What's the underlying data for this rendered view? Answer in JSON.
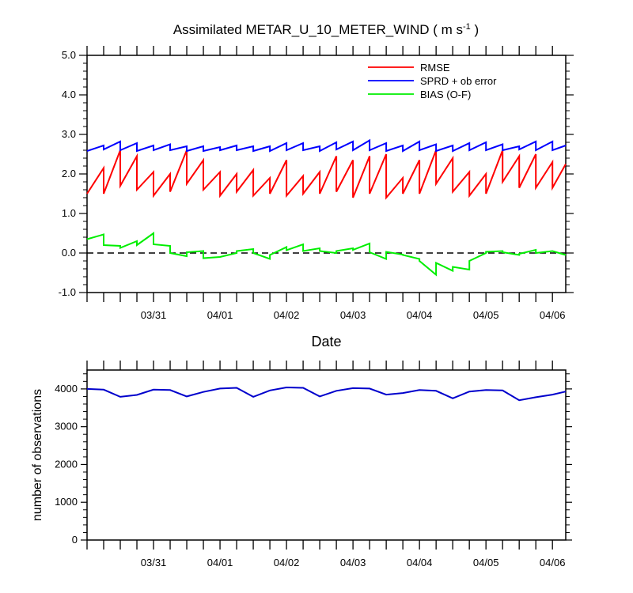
{
  "title": {
    "main": "Assimilated METAR_U_10_METER_WIND ( m s",
    "sup": "-1",
    "tail": " )"
  },
  "colors": {
    "rmse": "#ff0000",
    "sprd": "#0000ff",
    "bias": "#00ee00",
    "obs_line": "#0000cc",
    "zero_line": "#000000"
  },
  "chart_data": [
    {
      "type": "line",
      "x_unit": "days since 03/30 00Z",
      "xlim": [
        0,
        7.2
      ],
      "ylim": [
        -1,
        5
      ],
      "yticks": [
        -1,
        0,
        1,
        2,
        3,
        4,
        5
      ],
      "ytick_labels": [
        "-1.0",
        "0.0",
        "1.0",
        "2.0",
        "3.0",
        "4.0",
        "5.0"
      ],
      "xtick_labels": [
        "03/31",
        "04/01",
        "04/02",
        "04/03",
        "04/04",
        "04/05",
        "04/06"
      ],
      "xlabel": "Date",
      "ylabel": "",
      "reference_line": {
        "y": 0,
        "style": "dashed"
      },
      "legend": {
        "position": "top-right",
        "entries": [
          "RMSE",
          "SPRD + ob error",
          "BIAS (O-F)"
        ]
      },
      "series": [
        {
          "name": "RMSE",
          "color": "#ff0000",
          "x": [
            0.0,
            0.25,
            0.25,
            0.5,
            0.5,
            0.75,
            0.75,
            1.0,
            1.0,
            1.25,
            1.25,
            1.5,
            1.5,
            1.75,
            1.75,
            2.0,
            2.0,
            2.25,
            2.25,
            2.5,
            2.5,
            2.75,
            2.75,
            3.0,
            3.0,
            3.25,
            3.25,
            3.5,
            3.5,
            3.75,
            3.75,
            4.0,
            4.0,
            4.25,
            4.25,
            4.5,
            4.5,
            4.75,
            4.75,
            5.0,
            5.0,
            5.25,
            5.25,
            5.5,
            5.5,
            5.75,
            5.75,
            6.0,
            6.0,
            6.25,
            6.25,
            6.5,
            6.5,
            6.75,
            6.75,
            7.0,
            7.0,
            7.2
          ],
          "y": [
            1.5,
            2.15,
            1.5,
            2.6,
            1.7,
            2.45,
            1.6,
            2.05,
            1.45,
            2.0,
            1.55,
            2.6,
            1.75,
            2.35,
            1.6,
            2.05,
            1.45,
            2.0,
            1.55,
            2.1,
            1.45,
            1.9,
            1.5,
            2.35,
            1.45,
            1.95,
            1.5,
            2.05,
            1.5,
            2.45,
            1.55,
            2.35,
            1.4,
            2.45,
            1.5,
            2.5,
            1.4,
            1.9,
            1.5,
            2.35,
            1.5,
            2.6,
            1.75,
            2.4,
            1.55,
            2.05,
            1.45,
            2.0,
            1.5,
            2.6,
            1.8,
            2.45,
            1.65,
            2.5,
            1.65,
            2.3,
            1.65,
            2.25
          ]
        },
        {
          "name": "SPRD + ob error",
          "color": "#0000ff",
          "x": [
            0.0,
            0.25,
            0.25,
            0.5,
            0.5,
            0.75,
            0.75,
            1.0,
            1.0,
            1.25,
            1.25,
            1.5,
            1.5,
            1.75,
            1.75,
            2.0,
            2.0,
            2.25,
            2.25,
            2.5,
            2.5,
            2.75,
            2.75,
            3.0,
            3.0,
            3.25,
            3.25,
            3.5,
            3.5,
            3.75,
            3.75,
            4.0,
            4.0,
            4.25,
            4.25,
            4.5,
            4.5,
            4.75,
            4.75,
            5.0,
            5.0,
            5.25,
            5.25,
            5.5,
            5.5,
            5.75,
            5.75,
            6.0,
            6.0,
            6.25,
            6.25,
            6.5,
            6.5,
            6.75,
            6.75,
            7.0,
            7.0,
            7.2
          ],
          "y": [
            2.58,
            2.72,
            2.62,
            2.82,
            2.6,
            2.78,
            2.58,
            2.72,
            2.6,
            2.75,
            2.6,
            2.7,
            2.58,
            2.7,
            2.58,
            2.68,
            2.6,
            2.72,
            2.6,
            2.7,
            2.58,
            2.7,
            2.58,
            2.78,
            2.6,
            2.78,
            2.6,
            2.7,
            2.58,
            2.8,
            2.62,
            2.82,
            2.6,
            2.85,
            2.6,
            2.78,
            2.58,
            2.72,
            2.58,
            2.82,
            2.6,
            2.75,
            2.58,
            2.72,
            2.58,
            2.78,
            2.6,
            2.8,
            2.6,
            2.75,
            2.6,
            2.7,
            2.62,
            2.82,
            2.6,
            2.82,
            2.6,
            2.72
          ]
        },
        {
          "name": "BIAS (O-F)",
          "color": "#00ee00",
          "x": [
            0.0,
            0.25,
            0.25,
            0.5,
            0.5,
            0.75,
            0.75,
            1.0,
            1.0,
            1.25,
            1.25,
            1.5,
            1.5,
            1.75,
            1.75,
            2.0,
            2.0,
            2.25,
            2.25,
            2.5,
            2.5,
            2.75,
            2.75,
            3.0,
            3.0,
            3.25,
            3.25,
            3.5,
            3.5,
            3.75,
            3.75,
            4.0,
            4.0,
            4.25,
            4.25,
            4.5,
            4.5,
            4.75,
            4.75,
            5.0,
            5.0,
            5.25,
            5.25,
            5.5,
            5.5,
            5.75,
            5.75,
            6.0,
            6.0,
            6.25,
            6.25,
            6.5,
            6.5,
            6.75,
            6.75,
            7.0,
            7.0,
            7.2
          ],
          "y": [
            0.35,
            0.47,
            0.2,
            0.18,
            0.13,
            0.3,
            0.2,
            0.5,
            0.22,
            0.18,
            0.0,
            -0.08,
            0.02,
            0.05,
            -0.13,
            -0.1,
            -0.1,
            0.0,
            0.05,
            0.1,
            0.0,
            -0.15,
            -0.05,
            0.15,
            0.07,
            0.22,
            0.05,
            0.12,
            0.05,
            0.0,
            0.05,
            0.12,
            0.08,
            0.24,
            0.02,
            -0.15,
            0.03,
            -0.04,
            -0.05,
            -0.15,
            -0.2,
            -0.55,
            -0.25,
            -0.45,
            -0.35,
            -0.42,
            -0.2,
            0.0,
            0.03,
            0.05,
            0.02,
            -0.05,
            -0.02,
            0.08,
            0.0,
            0.05,
            0.05,
            -0.05
          ]
        }
      ]
    },
    {
      "type": "line",
      "x_unit": "days since 03/30 00Z",
      "xlim": [
        0,
        7.2
      ],
      "ylim": [
        0,
        4500
      ],
      "yticks": [
        0,
        1000,
        2000,
        3000,
        4000
      ],
      "ytick_labels": [
        "0",
        "1000",
        "2000",
        "3000",
        "4000"
      ],
      "xtick_labels": [
        "03/31",
        "04/01",
        "04/02",
        "04/03",
        "04/04",
        "04/05",
        "04/06"
      ],
      "xlabel": "",
      "ylabel": "number of observations",
      "series": [
        {
          "name": "number of observations",
          "color": "#0000cc",
          "x": [
            0.0,
            0.25,
            0.5,
            0.75,
            1.0,
            1.25,
            1.5,
            1.75,
            2.0,
            2.25,
            2.5,
            2.75,
            3.0,
            3.25,
            3.5,
            3.75,
            4.0,
            4.25,
            4.5,
            4.75,
            5.0,
            5.25,
            5.5,
            5.75,
            6.0,
            6.25,
            6.5,
            6.75,
            7.0,
            7.2
          ],
          "y": [
            4000,
            3980,
            3790,
            3840,
            3980,
            3970,
            3800,
            3920,
            4010,
            4030,
            3790,
            3960,
            4040,
            4030,
            3800,
            3950,
            4020,
            4010,
            3850,
            3890,
            3970,
            3950,
            3750,
            3930,
            3970,
            3960,
            3700,
            3780,
            3850,
            3930
          ]
        }
      ]
    }
  ]
}
